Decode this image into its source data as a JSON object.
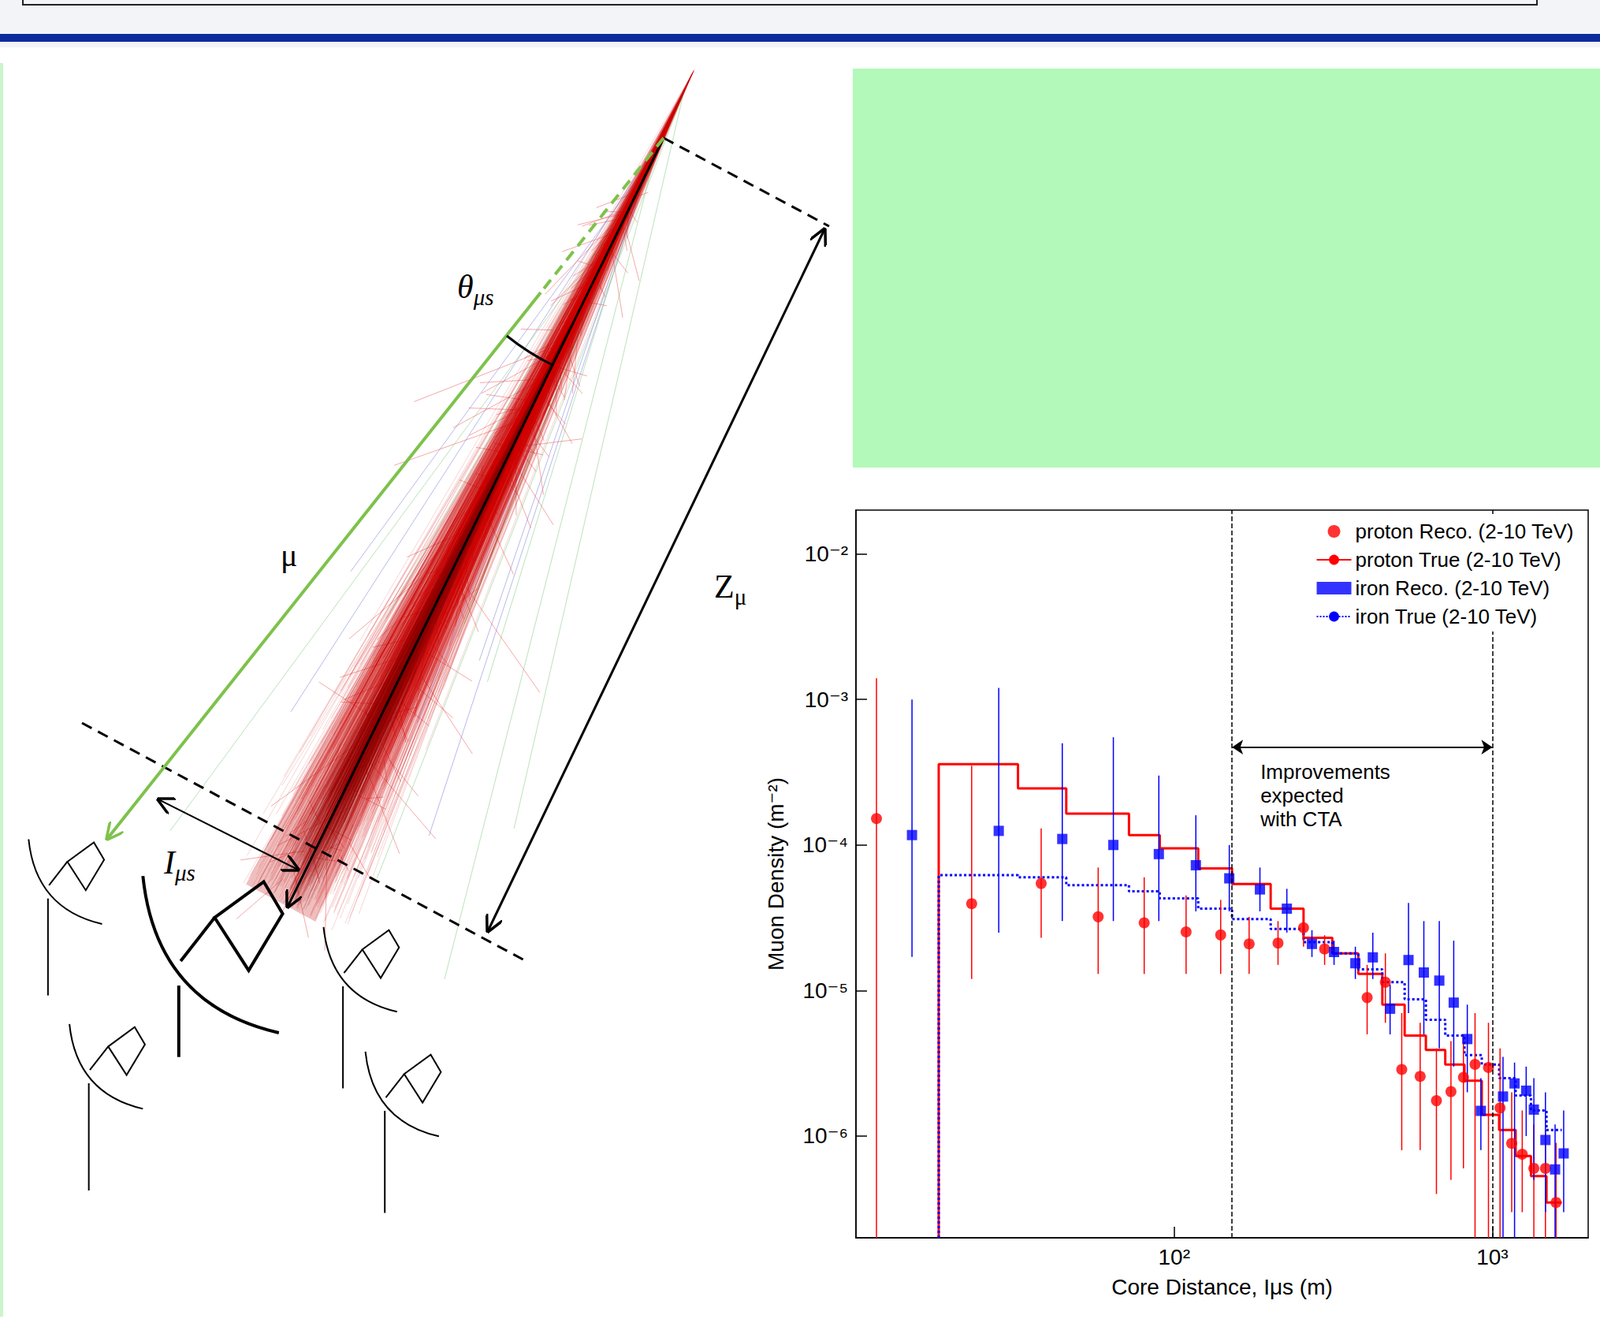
{
  "diagram": {
    "labels": {
      "angle": {
        "text": "θ",
        "sub": "μs"
      },
      "muon": {
        "text": "μ"
      },
      "depth": {
        "text": "Z",
        "sub": "μ"
      },
      "distance": {
        "text": "I",
        "sub": "μs"
      }
    }
  },
  "chart_data": {
    "type": "scatter",
    "xlabel": "Core Distance, Iμs (m)",
    "ylabel": "Muon Density (m⁻²)",
    "log": true,
    "grid": false,
    "legend": "upper right",
    "xlim": [
      10,
      2000
    ],
    "ylim": [
      2e-07,
      0.02
    ],
    "xticks": [
      {
        "value": 100,
        "label": "10²"
      },
      {
        "value": 1000,
        "label": "10³"
      }
    ],
    "yticks": [
      {
        "value": 1e-06,
        "label": "10⁻⁶"
      },
      {
        "value": 1e-05,
        "label": "10⁻⁵"
      },
      {
        "value": 0.0001,
        "label": "10⁻⁴"
      },
      {
        "value": 0.001,
        "label": "10⁻³"
      },
      {
        "value": 0.01,
        "label": "10⁻²"
      }
    ],
    "annotations": [
      {
        "text": "Improvements\nexpected\nwith CTA",
        "span": [
          152,
          1000
        ],
        "y": 0.00047
      }
    ],
    "series": [
      {
        "name": "proton Reco. (2-10 TeV)",
        "type": "scatter",
        "marker": "circle",
        "color": "#ff0000",
        "x": [
          11.6,
          23.1,
          38.2,
          57.7,
          80.5,
          109,
          140,
          172,
          212,
          255,
          297,
          404,
          461,
          519,
          593,
          667,
          741,
          811,
          882,
          972,
          1057,
          1150,
          1241,
          1350,
          1468,
          1585
        ],
        "values": [
          0.000152,
          3.95e-05,
          5.44e-05,
          3.21e-05,
          2.92e-05,
          2.53e-05,
          2.41e-05,
          2.09e-05,
          2.12e-05,
          2.7e-05,
          1.93e-05,
          8.94e-06,
          1.14e-05,
          2.87e-06,
          2.57e-06,
          1.75e-06,
          2.02e-06,
          2.53e-06,
          3.11e-06,
          2.96e-06,
          1.56e-06,
          8.9e-07,
          7.5e-07,
          6e-07,
          6e-07,
          3.5e-07
        ],
        "y_low": [
          1e-07,
          1.2e-05,
          2.3e-05,
          1.3e-05,
          1.3e-05,
          1.3e-05,
          1.3e-05,
          1.3e-05,
          1.5e-05,
          2e-05,
          1.5e-05,
          5e-06,
          6e-06,
          8e-07,
          8e-07,
          4e-07,
          5e-07,
          6e-07,
          1e-07,
          1e-07,
          1e-07,
          3e-07,
          3e-07,
          2e-07,
          2e-07,
          1e-07
        ],
        "y_high": [
          0.0014,
          0.00035,
          0.00013,
          7e-05,
          6e-05,
          4.5e-05,
          4.2e-05,
          3.2e-05,
          3e-05,
          3.5e-05,
          2.4e-05,
          1.5e-05,
          1.8e-05,
          7e-06,
          6e-06,
          4e-06,
          4.5e-06,
          5e-06,
          7e-06,
          6e-06,
          4e-06,
          2e-06,
          1.5e-06,
          1.2e-06,
          1.1e-06,
          9e-07
        ]
      },
      {
        "name": "proton True (2-10 TeV)",
        "type": "step",
        "line_style": "solid",
        "color": "#ff0000",
        "bins": [
          18.2,
          32.3,
          45.8,
          72.1,
          90.1,
          119,
          152,
          201,
          255,
          314,
          379,
          451,
          530,
          618,
          711,
          817,
          926,
          1050,
          1183,
          1322,
          1479,
          1652
        ],
        "values": [
          0.000359,
          0.000245,
          0.000164,
          0.000117,
          9.5e-05,
          6.9e-05,
          5.4e-05,
          3.65e-05,
          2.3e-05,
          1.8e-05,
          1.3e-05,
          8e-06,
          4.9e-06,
          3.9e-06,
          3.1e-06,
          2.4e-06,
          1.4e-06,
          1.1e-06,
          7.3e-07,
          5.3e-07,
          3.5e-07
        ]
      },
      {
        "name": "iron Reco. (2-10 TeV)",
        "type": "scatter",
        "marker": "square",
        "color": "#0000ff",
        "x": [
          15.0,
          28.1,
          44.5,
          64.4,
          89.5,
          117,
          149,
          186,
          226,
          271,
          318,
          371,
          421,
          477,
          545,
          609,
          681,
          756,
          834,
          920,
          1080,
          1174,
          1277,
          1350,
          1468,
          1574,
          1675
        ],
        "values": [
          0.000117,
          0.000125,
          0.00011,
          0.0001,
          8.66e-05,
          7.26e-05,
          5.9e-05,
          4.95e-05,
          3.65e-05,
          2.09e-05,
          1.84e-05,
          1.54e-05,
          1.69e-05,
          7.5e-06,
          1.62e-05,
          1.33e-05,
          1.17e-05,
          8.26e-06,
          4.64e-06,
          1.49e-06,
          1.87e-06,
          2.3e-06,
          2.05e-06,
          1.52e-06,
          9.4e-07,
          5.9e-07,
          7.6e-07
        ],
        "y_low": [
          1.7e-05,
          2.5e-05,
          3e-05,
          3e-05,
          3e-05,
          3.5e-05,
          3.5e-05,
          3.5e-05,
          2.5e-05,
          1.7e-05,
          1.5e-05,
          1.2e-05,
          1.2e-05,
          5e-06,
          7e-06,
          5e-06,
          4e-06,
          3e-06,
          2e-06,
          8e-07,
          1e-07,
          1e-07,
          1e-06,
          5e-07,
          3e-07,
          1e-07,
          3e-07
        ],
        "y_high": [
          0.001,
          0.0012,
          0.0005,
          0.00055,
          0.0003,
          0.00016,
          0.0001,
          7e-05,
          5e-05,
          2.6e-05,
          2.2e-05,
          2e-05,
          2.5e-05,
          1.1e-05,
          4e-05,
          3e-05,
          3e-05,
          2.2e-05,
          8e-06,
          2.5e-06,
          3.5e-06,
          3.2e-06,
          3e-06,
          2.5e-06,
          2e-06,
          1.2e-06,
          1.5e-06
        ]
      },
      {
        "name": "iron True (2-10 TeV)",
        "type": "step",
        "line_style": "dotted",
        "color": "#0000ff",
        "bins": [
          18.2,
          32.3,
          45.8,
          72.1,
          90.1,
          119,
          152,
          201,
          255,
          314,
          379,
          451,
          530,
          618,
          711,
          817,
          926,
          1050,
          1183,
          1322,
          1479,
          1652
        ],
        "values": [
          6.2e-05,
          6e-05,
          5.3e-05,
          4.8e-05,
          4.3e-05,
          3.65e-05,
          3.1e-05,
          2.65e-05,
          2.15e-05,
          1.8e-05,
          1.4e-05,
          1.14e-05,
          8.7e-06,
          6.3e-06,
          4.9e-06,
          3.6e-06,
          3.1e-06,
          2.5e-06,
          1.9e-06,
          1.5e-06,
          1.1e-06
        ]
      }
    ]
  }
}
